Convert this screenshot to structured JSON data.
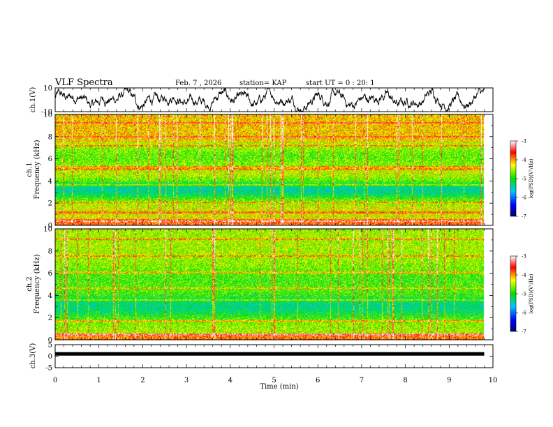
{
  "header": {
    "title": "VLF Spectra",
    "date": "Feb. 7 , 2026",
    "station": "station= KAP",
    "start": "start UT = 0 : 20: 1"
  },
  "chart_data": [
    {
      "type": "line",
      "name": "ch.1 waveform",
      "ylabel": "ch.1(V)",
      "ylim": [
        -10,
        10
      ],
      "yticks": [
        "10",
        "-10"
      ],
      "xlim": [
        0,
        10
      ],
      "data_end_min": 9.8
    },
    {
      "type": "heatmap",
      "name": "ch.1 spectrogram",
      "ylabel": "ch.1\nFrequency (kHz)",
      "ylim": [
        0,
        10
      ],
      "yticks": [
        "0",
        "2",
        "4",
        "6",
        "8",
        "10"
      ],
      "xlim": [
        0,
        10
      ],
      "data_end_min": 9.8,
      "colorbar": {
        "label": "log(PSD)(V²/Hz)",
        "range": [
          -7,
          -3
        ],
        "ticks": [
          "-3",
          "-4",
          "-5",
          "-6",
          "-7"
        ]
      }
    },
    {
      "type": "heatmap",
      "name": "ch.2 spectrogram",
      "ylabel": "ch.2\nFrequency (kHz)",
      "ylim": [
        0,
        10
      ],
      "yticks": [
        "0",
        "2",
        "4",
        "6",
        "8",
        "10"
      ],
      "xlim": [
        0,
        10
      ],
      "data_end_min": 9.8,
      "colorbar": {
        "label": "log(PSD)(V²/Hz)",
        "range": [
          -7,
          -3
        ],
        "ticks": [
          "-3",
          "-4",
          "-5",
          "-6",
          "-7"
        ]
      }
    },
    {
      "type": "line",
      "name": "ch.3 signal",
      "ylabel": "ch.3(V)",
      "ylim": [
        -5,
        5
      ],
      "yticks": [
        "5",
        "0",
        "-5"
      ],
      "xlim": [
        0,
        10
      ],
      "data_end_min": 9.8
    }
  ],
  "xaxis": {
    "label": "Time (min)",
    "ticks": [
      "0",
      "1",
      "2",
      "3",
      "4",
      "5",
      "6",
      "7",
      "8",
      "9",
      "10"
    ]
  }
}
